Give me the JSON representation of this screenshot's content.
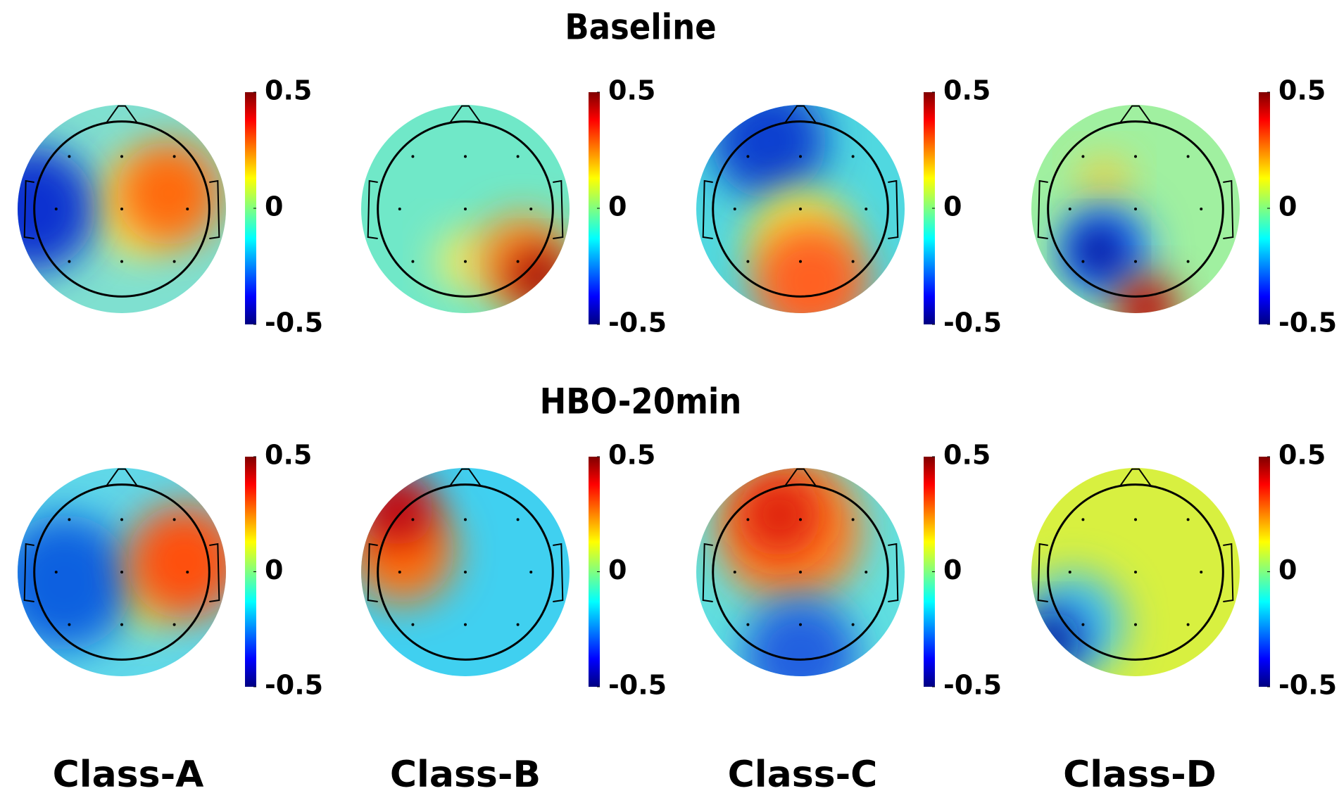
{
  "rows": [
    {
      "title": "Baseline"
    },
    {
      "title": "HBO-20min"
    }
  ],
  "class_labels": [
    "Class-A",
    "Class-B",
    "Class-C",
    "Class-D"
  ],
  "colorbar": {
    "min": -0.5,
    "max": 0.5,
    "ticks": [
      0.5,
      0,
      -0.5
    ]
  }
}
